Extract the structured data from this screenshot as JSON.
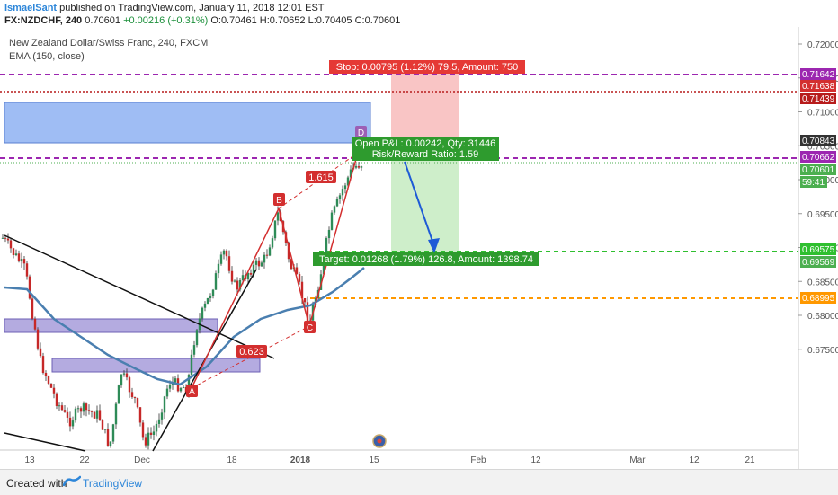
{
  "header": {
    "author": "IsmaelSant",
    "published": "published on TradingView.com, January 11, 2018 12:01 EST",
    "symbol": "FX:NZDCHF, 240",
    "last": "0.70601",
    "change": "+0.00216 (+0.31%)",
    "open": "O:0.70461",
    "high": "H:0.70652",
    "low": "L:0.70405",
    "close": "C:0.70601"
  },
  "chart_data": {
    "type": "candlestick",
    "title": "New Zealand Dollar/Swiss Franc, 240, FXCM",
    "indicator": "EMA (150, close)",
    "ylim": [
      0.6725,
      0.7228
    ],
    "y_ticks": [
      "0.72000",
      "0.71500",
      "0.71000",
      "0.70500",
      "0.70000",
      "0.69500",
      "0.69000",
      "0.68500",
      "0.68000",
      "0.67500"
    ],
    "x_ticks": [
      "13",
      "22",
      "Dec",
      "18",
      "2018",
      "15",
      "Feb",
      "12",
      "Mar",
      "12",
      "21"
    ],
    "price_labels": [
      {
        "value": "0.71642",
        "color": "#9c27b0"
      },
      {
        "value": "0.71638",
        "color": "#d32f2f"
      },
      {
        "value": "0.71439",
        "color": "#b71c1c"
      },
      {
        "value": "0.70843",
        "color": "#333333"
      },
      {
        "value": "0.70662",
        "color": "#9c27b0"
      },
      {
        "value": "0.70601",
        "color": "#4caf50"
      },
      {
        "value": "59:41",
        "color": "#4caf50"
      },
      {
        "value": "0.69575",
        "color": "#2fbf2f"
      },
      {
        "value": "0.69569",
        "color": "#4caf50"
      },
      {
        "value": "0.68995",
        "color": "#ff9800"
      }
    ],
    "pattern_points": [
      "A",
      "B",
      "C",
      "D"
    ],
    "ratios": [
      "1.615",
      "0.623"
    ],
    "stop_label": "Stop: 0.00795 (1.12%) 79.5, Amount: 750",
    "pnl_label": "Open P&L: 0.00242, Qty: 31446",
    "rr_label": "Risk/Reward Ratio: 1.59",
    "target_label": "Target: 0.01268 (1.79%) 126.8, Amount: 1398.74"
  },
  "footer": {
    "created": "Created with",
    "brand": "TradingView"
  }
}
